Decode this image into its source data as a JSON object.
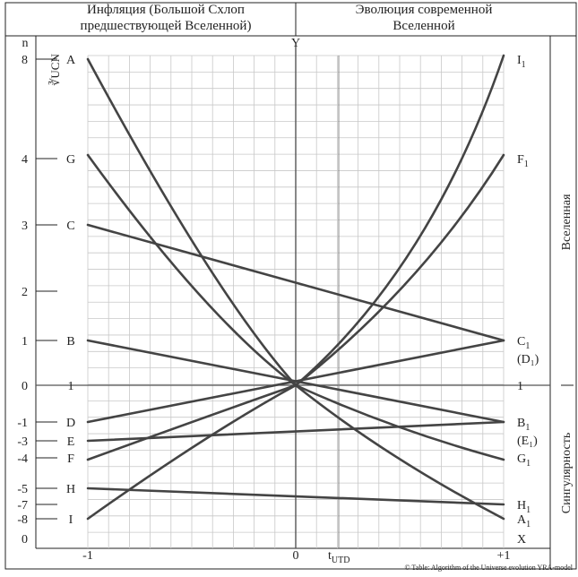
{
  "header": {
    "left": "Инфляция  (Большой Схлоп\nпредшествующей Вселенной)",
    "right": "Эволюция современной\nВселенной"
  },
  "right_labels": {
    "top": "Вселенная",
    "bottom": "Сингулярность"
  },
  "axis": {
    "y_title": "Y",
    "x_title_main": "t",
    "x_title_sub": "UTD",
    "x_end": "X",
    "x_ticks": [
      "-1",
      "0",
      "+1"
    ],
    "n_label": "n",
    "root_label": "∛UCN"
  },
  "levels": [
    {
      "n": "8",
      "left": "A",
      "right": "I",
      "right_sub": "1"
    },
    {
      "n": "4",
      "left": "G",
      "right": "F",
      "right_sub": "1"
    },
    {
      "n": "3",
      "left": "C",
      "right": "",
      "right_sub": ""
    },
    {
      "n": "2",
      "left": "",
      "right": "",
      "right_sub": ""
    },
    {
      "n": "1",
      "left": "B",
      "right": "C",
      "right_sub": "1",
      "right_extra": "(D₁)"
    },
    {
      "n": "0",
      "left": "1",
      "right": "1",
      "right_sub": ""
    },
    {
      "n": "-1",
      "left": "D",
      "right": "B",
      "right_sub": "1",
      "right_extra": "(E₁)"
    },
    {
      "n": "-3",
      "left": "E",
      "right": "",
      "right_sub": ""
    },
    {
      "n": "-4",
      "left": "F",
      "right": "G",
      "right_sub": "1"
    },
    {
      "n": "-5",
      "left": "H",
      "right": "",
      "right_sub": ""
    },
    {
      "n": "-7",
      "left": "",
      "right": "H",
      "right_sub": "1"
    },
    {
      "n": "-8",
      "left": "I",
      "right": "A",
      "right_sub": "1"
    },
    {
      "n": "0",
      "left": "",
      "right": "",
      "right_sub": ""
    }
  ],
  "credit": "© Table: Algorithm of the Universe evolution YRA-model"
}
